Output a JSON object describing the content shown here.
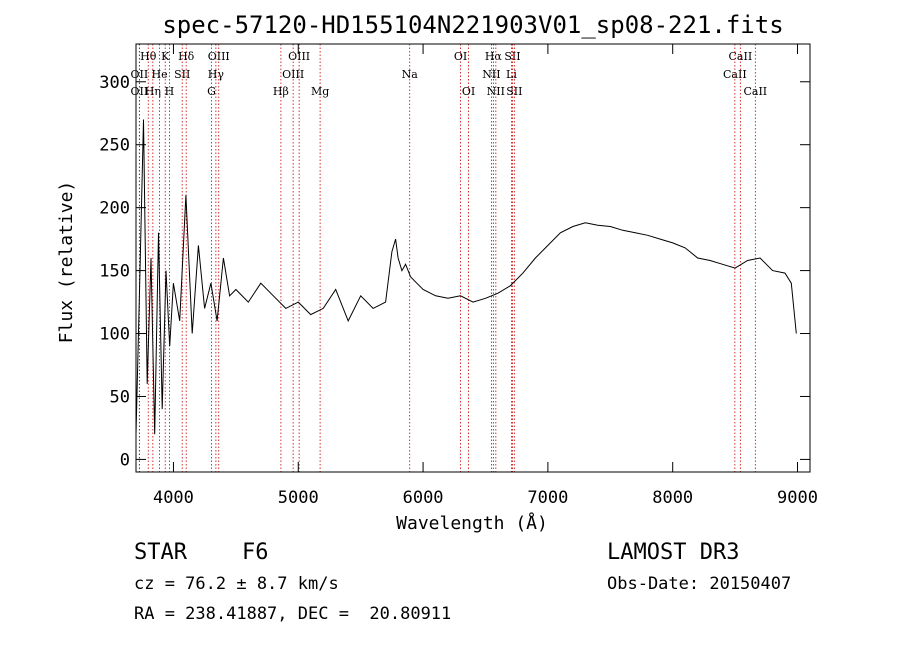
{
  "chart_data": {
    "type": "line",
    "title": "spec-57120-HD155104N221903V01_sp08-221.fits",
    "xlabel": "Wavelength (Å)",
    "ylabel": "Flux (relative)",
    "xlim": [
      3700,
      9100
    ],
    "ylim": [
      -10,
      330
    ],
    "x_ticks": [
      4000,
      5000,
      6000,
      7000,
      8000,
      9000
    ],
    "y_ticks": [
      0,
      50,
      100,
      150,
      200,
      250,
      300
    ],
    "x_tick_labels": [
      "4000",
      "5000",
      "6000",
      "7000",
      "8000",
      "9000"
    ],
    "y_tick_labels": [
      "0",
      "50",
      "100",
      "150",
      "200",
      "250",
      "300"
    ],
    "line_color": "#000000",
    "marker_color": "#cc0000",
    "series": [
      {
        "x": [
          3700,
          3730,
          3760,
          3790,
          3820,
          3850,
          3880,
          3910,
          3940,
          3970,
          4000,
          4050,
          4100,
          4150,
          4200,
          4250,
          4300,
          4350,
          4400,
          4450,
          4500,
          4600,
          4700,
          4800,
          4900,
          5000,
          5100,
          5200,
          5300,
          5400,
          5500,
          5600,
          5700,
          5750,
          5780,
          5800,
          5830,
          5860,
          5900,
          5950,
          6000,
          6100,
          6200,
          6300,
          6400,
          6500,
          6600,
          6700,
          6800,
          6900,
          7000,
          7100,
          7200,
          7300,
          7400,
          7500,
          7600,
          7700,
          7800,
          7900,
          8000,
          8100,
          8200,
          8300,
          8400,
          8500,
          8600,
          8700,
          8800,
          8900,
          8950,
          8990
        ],
        "y": [
          20,
          140,
          270,
          60,
          160,
          20,
          180,
          40,
          150,
          90,
          140,
          110,
          210,
          100,
          170,
          120,
          140,
          110,
          160,
          130,
          135,
          125,
          140,
          130,
          120,
          125,
          115,
          120,
          135,
          110,
          130,
          120,
          125,
          165,
          175,
          160,
          150,
          155,
          145,
          140,
          135,
          130,
          128,
          130,
          125,
          128,
          132,
          138,
          148,
          160,
          170,
          180,
          185,
          188,
          186,
          185,
          182,
          180,
          178,
          175,
          172,
          168,
          160,
          158,
          155,
          152,
          158,
          160,
          150,
          148,
          140,
          100
        ]
      }
    ],
    "line_markers": [
      {
        "label": "Hθ",
        "x": 3798,
        "row": 0
      },
      {
        "label": "K",
        "x": 3934,
        "row": 0
      },
      {
        "label": "Hδ",
        "x": 4102,
        "row": 0
      },
      {
        "label": "OIII",
        "x": 4363,
        "row": 0
      },
      {
        "label": "OIII",
        "x": 5007,
        "row": 0
      },
      {
        "label": "OI",
        "x": 6300,
        "row": 0
      },
      {
        "label": "Hα",
        "x": 6563,
        "row": 0
      },
      {
        "label": "SII",
        "x": 6716,
        "row": 0
      },
      {
        "label": "CaII",
        "x": 8542,
        "row": 0
      },
      {
        "label": "OII",
        "x": 3727,
        "row": 1
      },
      {
        "label": "He",
        "x": 3889,
        "row": 1
      },
      {
        "label": "SII",
        "x": 4070,
        "row": 1
      },
      {
        "label": "Hγ",
        "x": 4340,
        "row": 1
      },
      {
        "label": "OIII",
        "x": 4959,
        "row": 1
      },
      {
        "label": "Na",
        "x": 5893,
        "row": 1
      },
      {
        "label": "NII",
        "x": 6548,
        "row": 1
      },
      {
        "label": "Li",
        "x": 6708,
        "row": 1
      },
      {
        "label": "CaII",
        "x": 8498,
        "row": 1
      },
      {
        "label": "OII",
        "x": 3727,
        "row": 2
      },
      {
        "label": "Hη",
        "x": 3835,
        "row": 2
      },
      {
        "label": "H",
        "x": 3968,
        "row": 2
      },
      {
        "label": "G",
        "x": 4305,
        "row": 2
      },
      {
        "label": "Hβ",
        "x": 4861,
        "row": 2
      },
      {
        "label": "Mg",
        "x": 5175,
        "row": 2
      },
      {
        "label": "OI",
        "x": 6364,
        "row": 2
      },
      {
        "label": "NII",
        "x": 6583,
        "row": 2
      },
      {
        "label": "SII",
        "x": 6731,
        "row": 2
      },
      {
        "label": "CaII",
        "x": 8662,
        "row": 2
      }
    ]
  },
  "info": {
    "class": "STAR",
    "subclass": "F6",
    "survey": "LAMOST DR3",
    "cz": "cz = 76.2 ± 8.7 km/s",
    "obs_date": "Obs-Date: 20150407",
    "coords": "RA = 238.41887, DEC =  20.80911"
  }
}
